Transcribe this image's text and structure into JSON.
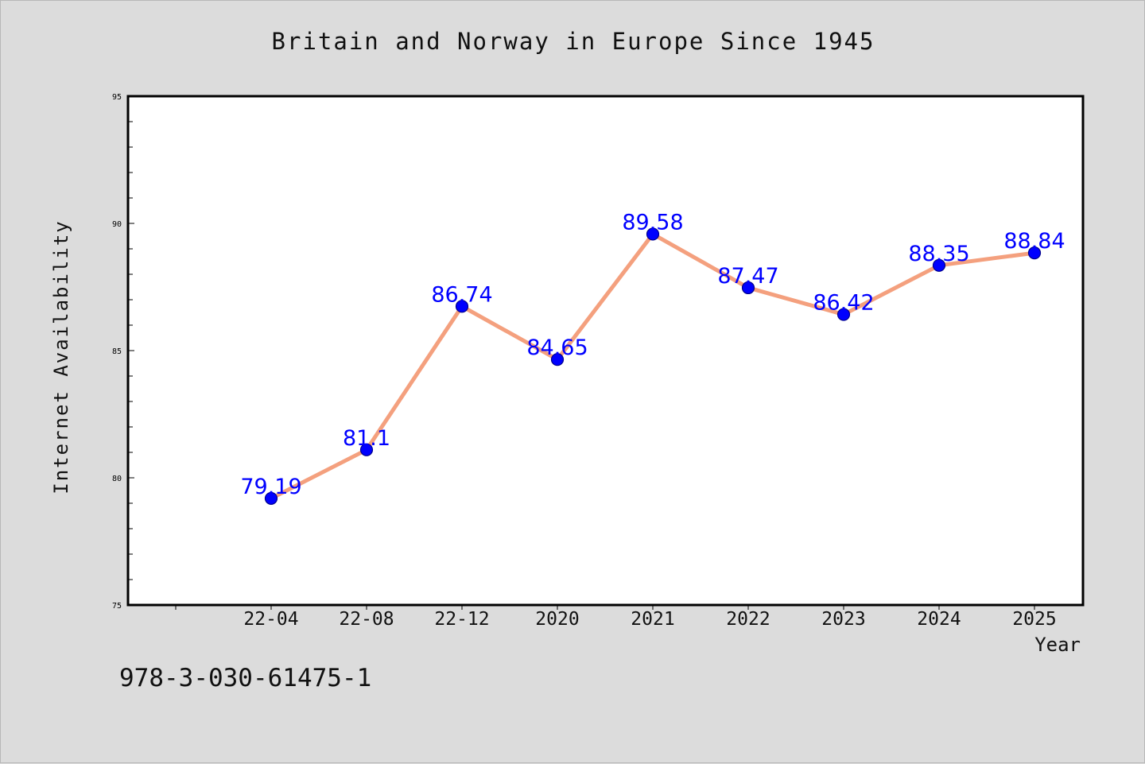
{
  "chart_data": {
    "type": "line",
    "title": "Britain and Norway in Europe Since 1945",
    "xlabel": "Year",
    "ylabel": "Internet Availability",
    "categories": [
      "22-04",
      "22-08",
      "22-12",
      "2020",
      "2021",
      "2022",
      "2023",
      "2024",
      "2025"
    ],
    "series": [
      {
        "values": [
          79.19,
          81.1,
          86.74,
          84.65,
          89.58,
          87.47,
          86.42,
          88.35,
          88.84
        ],
        "labels": [
          "79.19",
          "81.1",
          "86.74",
          "84.65",
          "89.58",
          "87.47",
          "86.42",
          "88.35",
          "88.84"
        ]
      }
    ],
    "ylim": [
      75,
      95
    ],
    "yticks": [
      75,
      80,
      85,
      90,
      95
    ],
    "grid": false,
    "colors": {
      "line": "#f4a07e",
      "marker": "#0000ff",
      "marker_edge": "#00008b",
      "data_label": "#0000ff",
      "plot_bg": "#ffffff",
      "page_bg": "#dcdcdc"
    }
  },
  "footnote": "978-3-030-61475-1"
}
